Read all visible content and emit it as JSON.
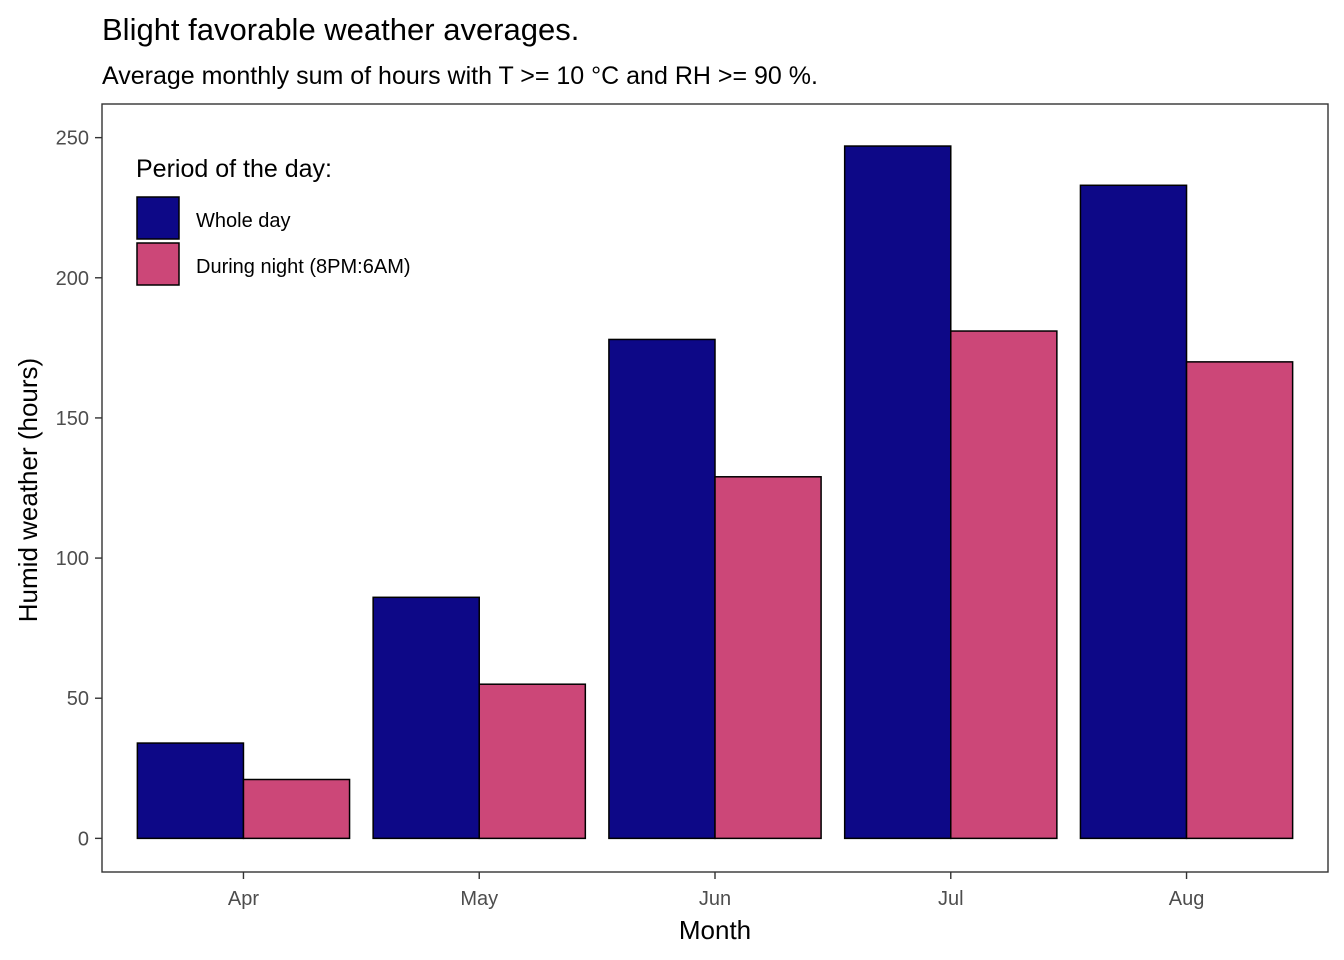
{
  "chart_data": {
    "type": "bar",
    "title": "Blight favorable weather averages.",
    "subtitle": "Average monthly sum of hours with T >= 10 °C and RH >= 90 %.",
    "xlabel": "Month",
    "ylabel": "Humid weather (hours)",
    "categories": [
      "Apr",
      "May",
      "Jun",
      "Jul",
      "Aug"
    ],
    "series": [
      {
        "name": "Whole day",
        "color": "#0d0887",
        "values": [
          34,
          86,
          178,
          247,
          233
        ]
      },
      {
        "name": "During night (8PM:6AM)",
        "color": "#cc4778",
        "values": [
          21,
          55,
          129,
          181,
          170
        ]
      }
    ],
    "ylim": [
      -12,
      262
    ],
    "yticks": [
      0,
      50,
      100,
      150,
      200,
      250
    ],
    "grid": false,
    "legend": {
      "title": "Period of the day:",
      "placement": "top-left"
    }
  }
}
